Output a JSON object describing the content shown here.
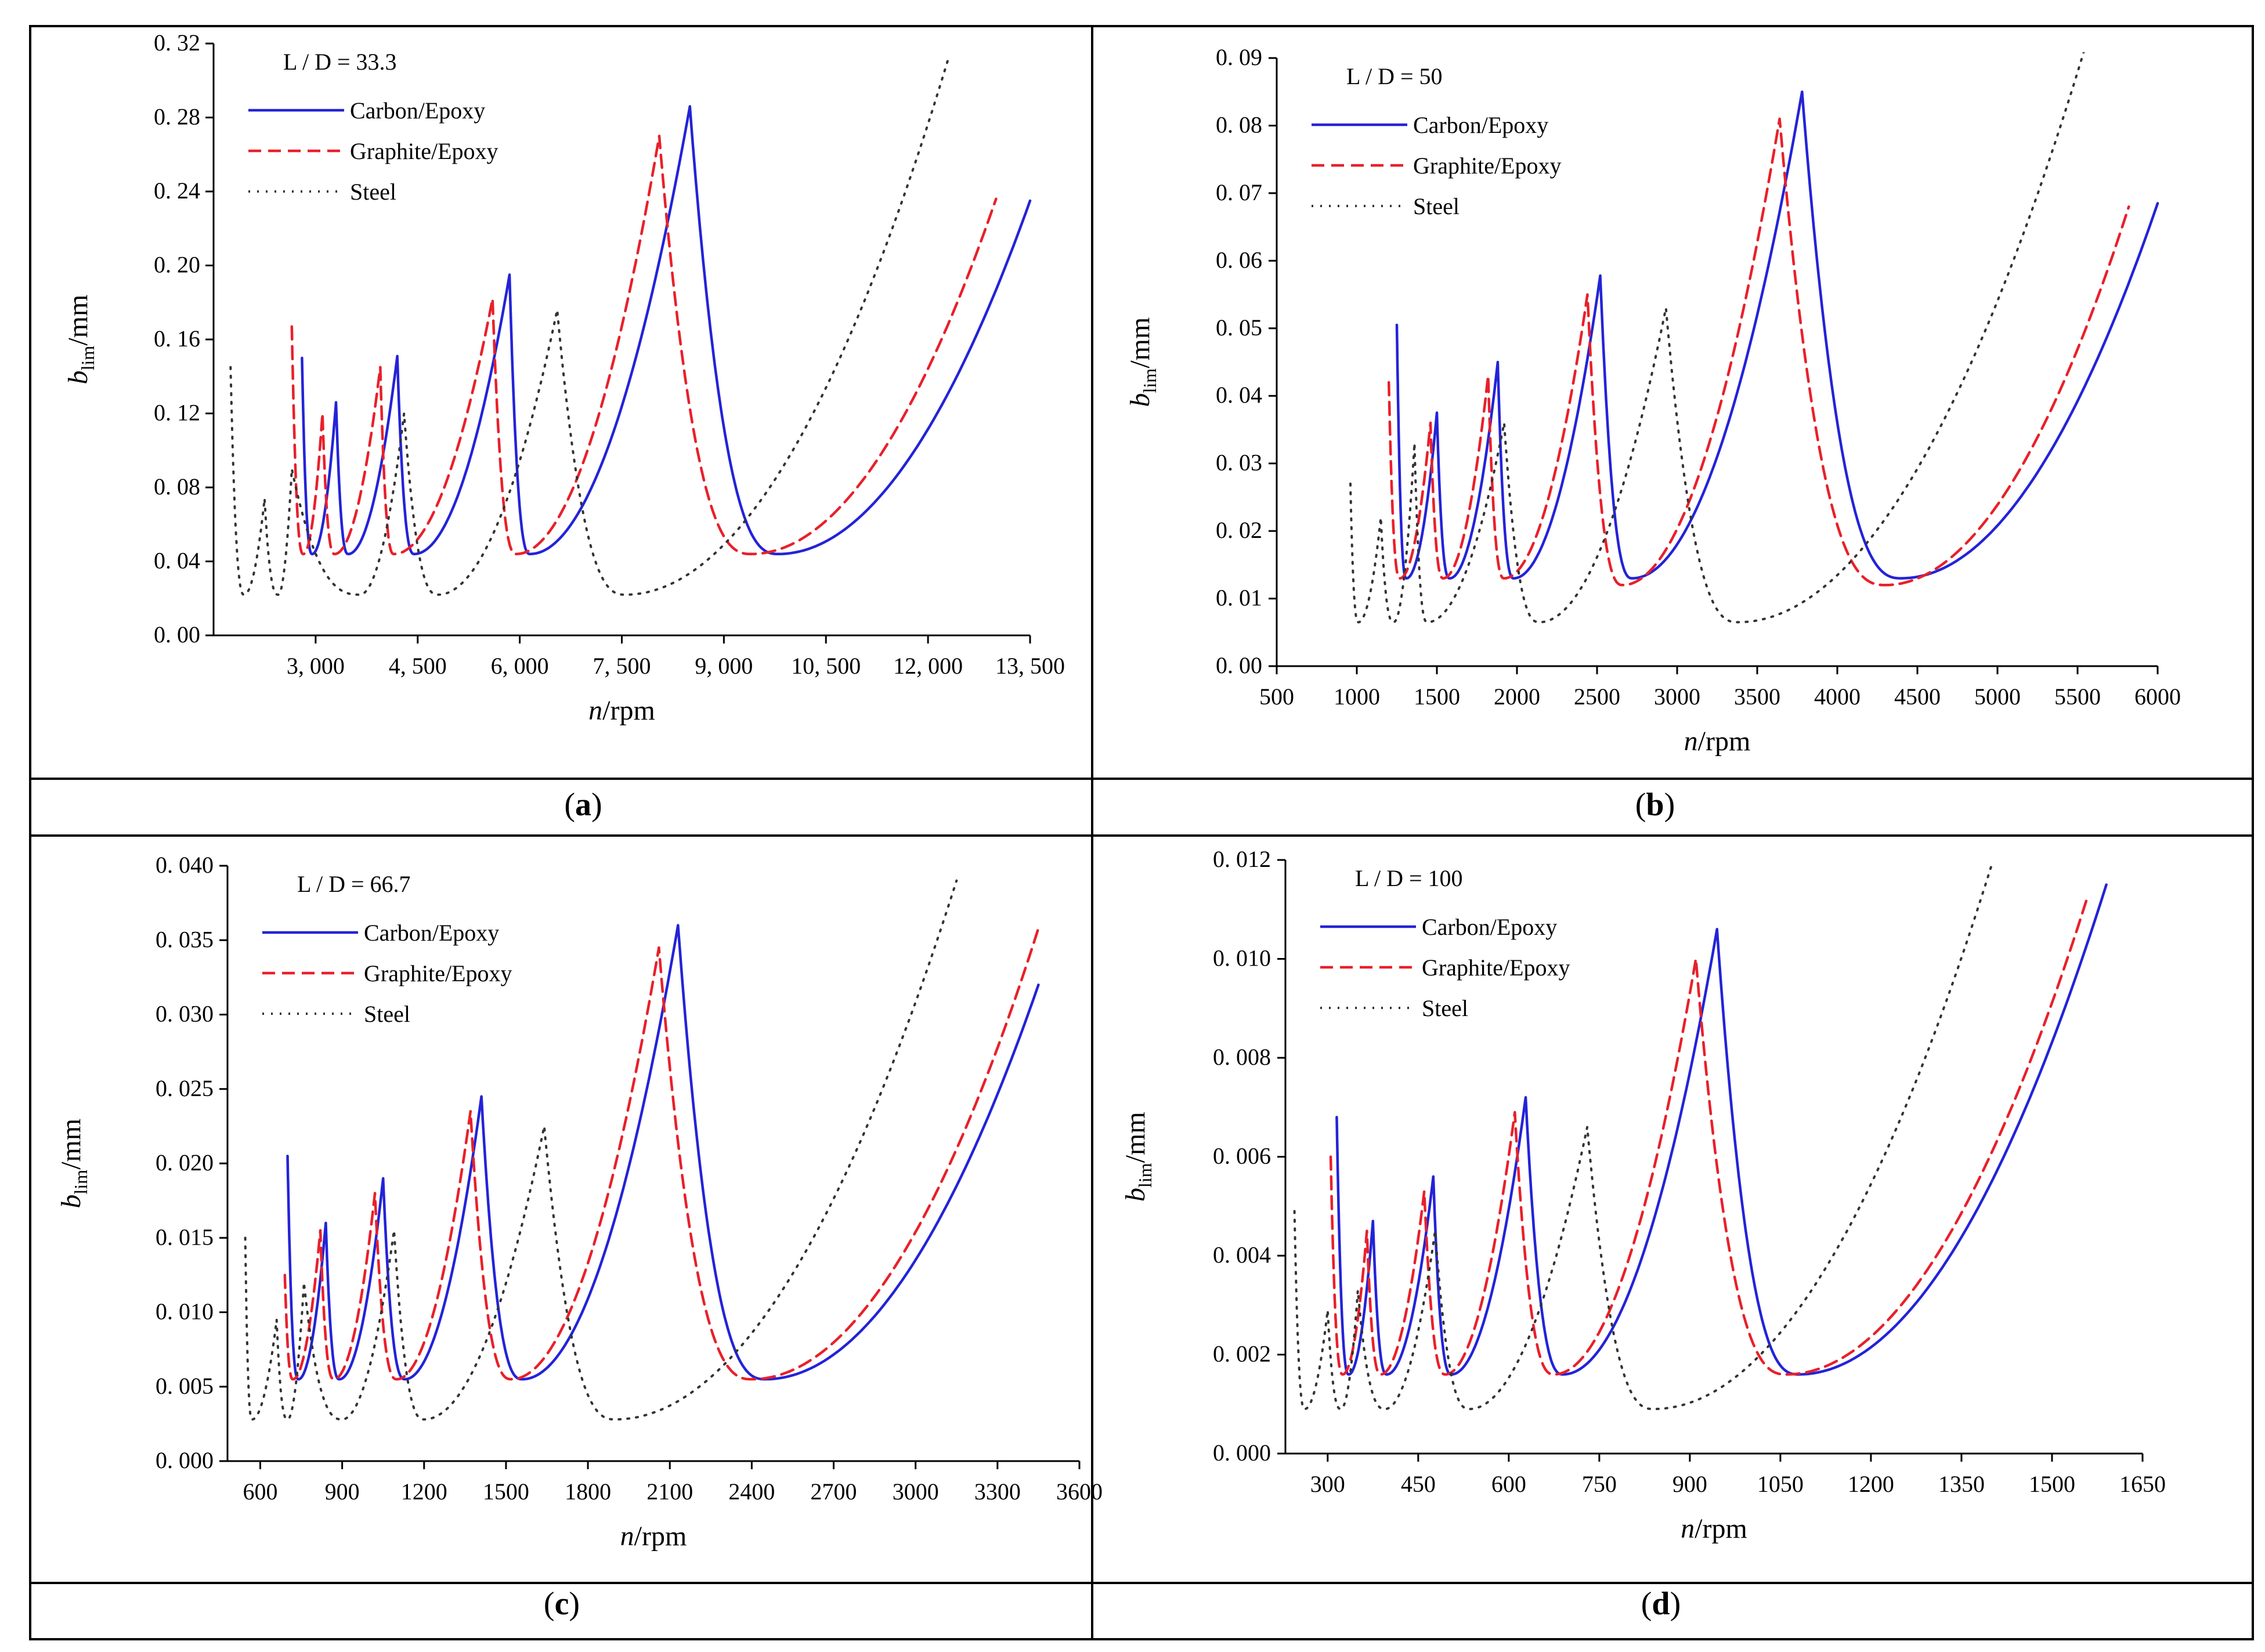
{
  "colors": {
    "carbon": "#2323d8",
    "graphite": "#e8202a",
    "steel": "#333333",
    "frame": "#000000"
  },
  "chart_data": [
    {
      "type": "line",
      "panel_label": "a",
      "annotation": "L / D = 33.3",
      "xlabel_italic": "n",
      "xlabel_rest": "/rpm",
      "ylabel_base": "b",
      "ylabel_sub": "lim",
      "ylabel_rest": "/mm",
      "xlim": [
        1500,
        13500
      ],
      "ylim": [
        0,
        0.32
      ],
      "x_ticks": [
        3000,
        4500,
        6000,
        7500,
        9000,
        10500,
        12000,
        13500
      ],
      "x_tick_labels": [
        "3, 000",
        "4, 500",
        "6, 000",
        "7, 500",
        "9, 000",
        "10, 500",
        "12, 000",
        "13, 500"
      ],
      "y_ticks": [
        0,
        0.04,
        0.08,
        0.12,
        0.16,
        0.2,
        0.24,
        0.28,
        0.32
      ],
      "y_tick_labels": [
        "0. 00",
        "0. 04",
        "0. 08",
        "0. 12",
        "0. 16",
        "0. 20",
        "0. 24",
        "0. 28",
        "0. 32"
      ],
      "series": [
        {
          "name": "Carbon/Epoxy",
          "style": "solid",
          "start": [
            2800,
            0.15
          ],
          "segments": [
            [
              2950,
              0.044,
              3300,
              0.126
            ],
            [
              3480,
              0.044,
              4200,
              0.151
            ],
            [
              4450,
              0.044,
              5850,
              0.195
            ],
            [
              6150,
              0.044,
              8500,
              0.286
            ],
            [
              9800,
              0.044,
              13500,
              0.235
            ]
          ]
        },
        {
          "name": "Graphite/Epoxy",
          "style": "dashed",
          "start": [
            2650,
            0.167
          ],
          "segments": [
            [
              2820,
              0.044,
              3100,
              0.12
            ],
            [
              3280,
              0.044,
              3950,
              0.145
            ],
            [
              4150,
              0.044,
              5600,
              0.182
            ],
            [
              5950,
              0.044,
              8050,
              0.27
            ],
            [
              9400,
              0.044,
              13000,
              0.236
            ]
          ]
        },
        {
          "name": "Steel",
          "style": "dotted",
          "start": [
            1750,
            0.145
          ],
          "segments": [
            [
              1950,
              0.022,
              2250,
              0.074
            ],
            [
              2450,
              0.022,
              2650,
              0.09
            ],
            [
              3650,
              0.022,
              4300,
              0.12
            ],
            [
              4800,
              0.022,
              6550,
              0.176
            ],
            [
              7550,
              0.022,
              12300,
              0.312
            ]
          ]
        }
      ]
    },
    {
      "type": "line",
      "panel_label": "b",
      "annotation": "L / D = 50",
      "xlabel_italic": "n",
      "xlabel_rest": "/rpm",
      "ylabel_base": "b",
      "ylabel_sub": "lim",
      "ylabel_rest": "/mm",
      "xlim": [
        500,
        6000
      ],
      "ylim": [
        0,
        0.09
      ],
      "x_ticks": [
        500,
        1000,
        1500,
        2000,
        2500,
        3000,
        3500,
        4000,
        4500,
        5000,
        5500,
        6000
      ],
      "x_tick_labels": [
        "500",
        "1000",
        "1500",
        "2000",
        "2500",
        "3000",
        "3500",
        "4000",
        "4500",
        "5000",
        "5500",
        "6000"
      ],
      "y_ticks": [
        0,
        0.01,
        0.02,
        0.03,
        0.04,
        0.05,
        0.06,
        0.07,
        0.08,
        0.09
      ],
      "y_tick_labels": [
        "0. 00",
        "0. 01",
        "0. 02",
        "0. 03",
        "0. 04",
        "0. 05",
        "0. 06",
        "0. 07",
        "0. 08",
        "0. 09"
      ],
      "series": [
        {
          "name": "Carbon/Epoxy",
          "style": "solid",
          "start": [
            1250,
            0.0505
          ],
          "segments": [
            [
              1310,
              0.013,
              1500,
              0.0375
            ],
            [
              1580,
              0.013,
              1880,
              0.045
            ],
            [
              1980,
              0.013,
              2520,
              0.0578
            ],
            [
              2720,
              0.013,
              3780,
              0.085
            ],
            [
              4400,
              0.013,
              6000,
              0.0685
            ]
          ]
        },
        {
          "name": "Graphite/Epoxy",
          "style": "dashed",
          "start": [
            1200,
            0.042
          ],
          "segments": [
            [
              1270,
              0.013,
              1460,
              0.036
            ],
            [
              1540,
              0.013,
              1820,
              0.043
            ],
            [
              1920,
              0.013,
              2440,
              0.055
            ],
            [
              2660,
              0.012,
              3640,
              0.081
            ],
            [
              4300,
              0.012,
              5820,
              0.068
            ]
          ]
        },
        {
          "name": "Steel",
          "style": "dotted",
          "start": [
            960,
            0.027
          ],
          "segments": [
            [
              1010,
              0.0065,
              1150,
              0.022
            ],
            [
              1230,
              0.0065,
              1360,
              0.033
            ],
            [
              1440,
              0.0065,
              1920,
              0.036
            ],
            [
              2140,
              0.0065,
              2930,
              0.053
            ],
            [
              3380,
              0.0065,
              5540,
              0.091
            ]
          ]
        }
      ]
    },
    {
      "type": "line",
      "panel_label": "c",
      "annotation": "L / D = 66.7",
      "xlabel_italic": "n",
      "xlabel_rest": "/rpm",
      "ylabel_base": "b",
      "ylabel_sub": "lim",
      "ylabel_rest": "/mm",
      "xlim": [
        480,
        3600
      ],
      "ylim": [
        0,
        0.04
      ],
      "x_ticks": [
        600,
        900,
        1200,
        1500,
        1800,
        2100,
        2400,
        2700,
        3000,
        3300,
        3600
      ],
      "x_tick_labels": [
        "600",
        "900",
        "1200",
        "1500",
        "1800",
        "2100",
        "2400",
        "2700",
        "3000",
        "3300",
        "3600"
      ],
      "y_ticks": [
        0,
        0.005,
        0.01,
        0.015,
        0.02,
        0.025,
        0.03,
        0.035,
        0.04
      ],
      "y_tick_labels": [
        "0. 000",
        "0. 005",
        "0. 010",
        "0. 015",
        "0. 020",
        "0. 025",
        "0. 030",
        "0. 035",
        "0. 040"
      ],
      "series": [
        {
          "name": "Carbon/Epoxy",
          "style": "solid",
          "start": [
            700,
            0.0205
          ],
          "segments": [
            [
              740,
              0.0055,
              840,
              0.016
            ],
            [
              890,
              0.0055,
              1050,
              0.019
            ],
            [
              1130,
              0.0055,
              1410,
              0.0245
            ],
            [
              1560,
              0.0055,
              2130,
              0.036
            ],
            [
              2450,
              0.0055,
              3450,
              0.032
            ]
          ]
        },
        {
          "name": "Graphite/Epoxy",
          "style": "dashed",
          "start": [
            690,
            0.0125
          ],
          "segments": [
            [
              720,
              0.0055,
              820,
              0.0155
            ],
            [
              870,
              0.0055,
              1020,
              0.018
            ],
            [
              1100,
              0.0055,
              1370,
              0.0235
            ],
            [
              1520,
              0.0055,
              2060,
              0.0345
            ],
            [
              2400,
              0.0055,
              3450,
              0.0358
            ]
          ]
        },
        {
          "name": "Steel",
          "style": "dotted",
          "start": [
            545,
            0.015
          ],
          "segments": [
            [
              570,
              0.0028,
              660,
              0.0095
            ],
            [
              700,
              0.0028,
              760,
              0.012
            ],
            [
              900,
              0.0028,
              1090,
              0.0155
            ],
            [
              1200,
              0.0028,
              1640,
              0.0225
            ],
            [
              1900,
              0.0028,
              3150,
              0.039
            ]
          ]
        }
      ]
    },
    {
      "type": "line",
      "panel_label": "d",
      "annotation": "L / D = 100",
      "xlabel_italic": "n",
      "xlabel_rest": "/rpm",
      "ylabel_base": "b",
      "ylabel_sub": "lim",
      "ylabel_rest": "/mm",
      "xlim": [
        230,
        1650
      ],
      "ylim": [
        0,
        0.012
      ],
      "x_ticks": [
        300,
        450,
        600,
        750,
        900,
        1050,
        1200,
        1350,
        1500,
        1650
      ],
      "x_tick_labels": [
        "300",
        "450",
        "600",
        "750",
        "900",
        "1050",
        "1200",
        "1350",
        "1500",
        "1650"
      ],
      "y_ticks": [
        0,
        0.002,
        0.004,
        0.006,
        0.008,
        0.01,
        0.012
      ],
      "y_tick_labels": [
        "0. 000",
        "0. 002",
        "0. 004",
        "0. 006",
        "0. 008",
        "0. 010",
        "0. 012"
      ],
      "series": [
        {
          "name": "Carbon/Epoxy",
          "style": "solid",
          "start": [
            315,
            0.0068
          ],
          "segments": [
            [
              335,
              0.0016,
              375,
              0.0047
            ],
            [
              398,
              0.0016,
              475,
              0.0056
            ],
            [
              505,
              0.0016,
              628,
              0.0072
            ],
            [
              690,
              0.0016,
              945,
              0.0106
            ],
            [
              1080,
              0.0016,
              1590,
              0.0115
            ]
          ]
        },
        {
          "name": "Graphite/Epoxy",
          "style": "dashed",
          "start": [
            305,
            0.006
          ],
          "segments": [
            [
              325,
              0.0016,
              365,
              0.0045
            ],
            [
              388,
              0.0016,
              460,
              0.0053
            ],
            [
              495,
              0.0016,
              610,
              0.0069
            ],
            [
              675,
              0.0016,
              910,
              0.01
            ],
            [
              1060,
              0.0016,
              1560,
              0.0113
            ]
          ]
        },
        {
          "name": "Steel",
          "style": "dotted",
          "start": [
            245,
            0.0049
          ],
          "segments": [
            [
              262,
              0.0009,
              300,
              0.0029
            ],
            [
              322,
              0.0009,
              350,
              0.0033
            ],
            [
              395,
              0.0009,
              478,
              0.0045
            ],
            [
              535,
              0.0009,
              730,
              0.0066
            ],
            [
              840,
              0.0009,
              1400,
              0.0119
            ]
          ]
        }
      ]
    }
  ]
}
